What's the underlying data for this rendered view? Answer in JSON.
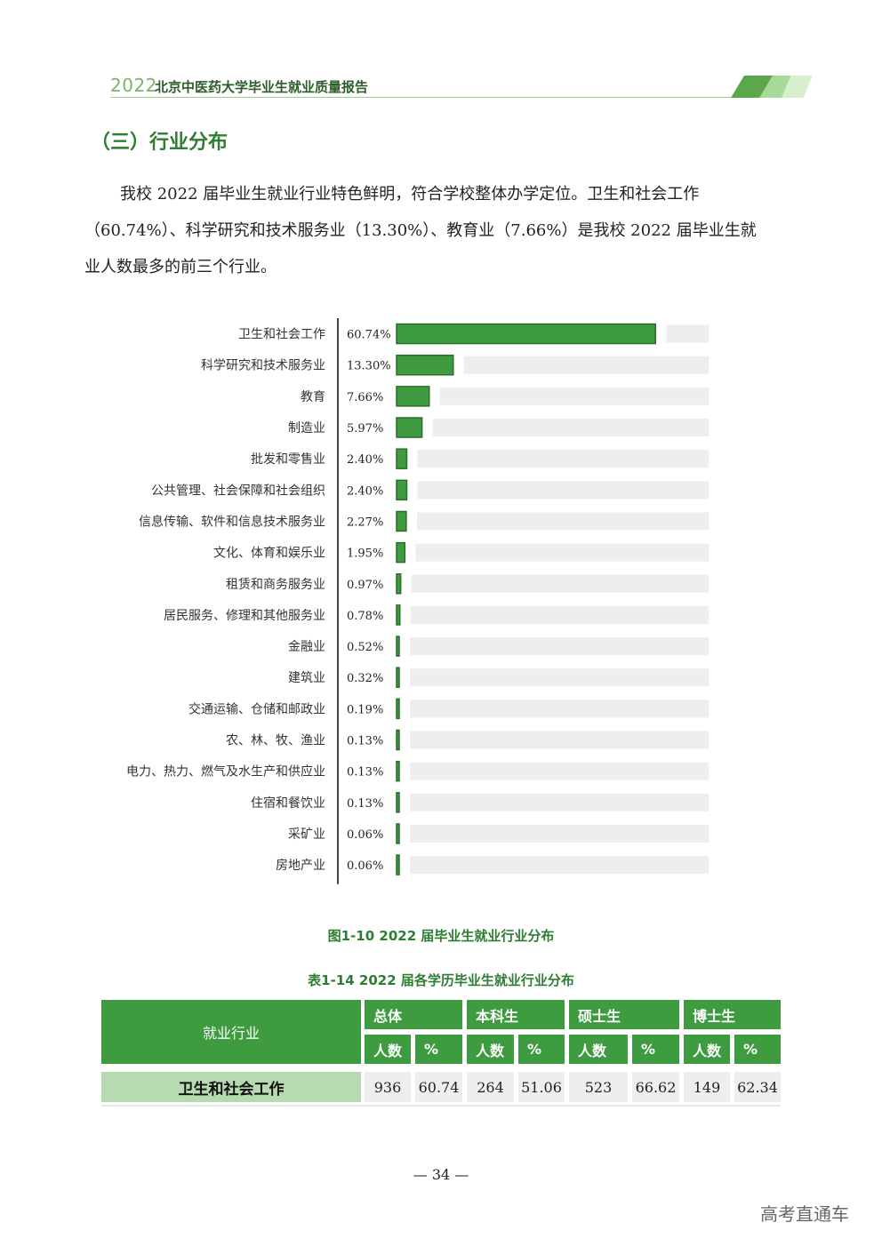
{
  "header": {
    "year": "2022",
    "title": "北京中医药大学毕业生就业质量报告"
  },
  "section": {
    "title": "（三）行业分布"
  },
  "paragraph": {
    "line1": "我校 2022 届毕业生就业行业特色鲜明，符合学校整体办学定位。卫生和社会工作",
    "line2": "（60.74%）、科学研究和技术服务业（13.30%）、教育业（7.66%）是我校 2022 届毕业生就",
    "line3": "业人数最多的前三个行业。"
  },
  "chart_data": {
    "type": "bar",
    "orientation": "horizontal",
    "categories": [
      "卫生和社会工作",
      "科学研究和技术服务业",
      "教育",
      "制造业",
      "批发和零售业",
      "公共管理、社会保障和社会组织",
      "信息传输、软件和信息技术服务业",
      "文化、体育和娱乐业",
      "租赁和商务服务业",
      "居民服务、修理和其他服务业",
      "金融业",
      "建筑业",
      "交通运输、仓储和邮政业",
      "农、林、牧、渔业",
      "电力、热力、燃气及水生产和供应业",
      "住宿和餐饮业",
      "采矿业",
      "房地产业"
    ],
    "values": [
      60.74,
      13.3,
      7.66,
      5.97,
      2.4,
      2.4,
      2.27,
      1.95,
      0.97,
      0.78,
      0.52,
      0.32,
      0.19,
      0.13,
      0.13,
      0.13,
      0.06,
      0.06
    ],
    "labels": [
      "60.74%",
      "13.30%",
      "7.66%",
      "5.97%",
      "2.40%",
      "2.40%",
      "2.27%",
      "1.95%",
      "0.97%",
      "0.78%",
      "0.52%",
      "0.32%",
      "0.19%",
      "0.13%",
      "0.13%",
      "0.13%",
      "0.06%",
      "0.06%"
    ],
    "xlim": [
      0,
      73
    ],
    "bar_color": "#3f9b3f",
    "track_color": "#eeeeee"
  },
  "figure_caption": "图1-10 2022 届毕业生就业行业分布",
  "table_caption": "表1-14  2022 届各学历毕业生就业行业分布",
  "table": {
    "corner": "就业行业",
    "groups": [
      "总体",
      "本科生",
      "硕士生",
      "博士生"
    ],
    "subheaders": [
      "人数",
      "%",
      "人数",
      "%",
      "人数",
      "%",
      "人数",
      "%"
    ],
    "row_label": "卫生和社会工作",
    "row_values": [
      "936",
      "60.74",
      "264",
      "51.06",
      "523",
      "66.62",
      "149",
      "62.34"
    ]
  },
  "page_number": "— 34 —",
  "watermark": "高考直通车",
  "colors": {
    "accent": "#3f9b3f",
    "title_green": "#2e7d32",
    "row_label_bg": "#b7dbb0"
  }
}
